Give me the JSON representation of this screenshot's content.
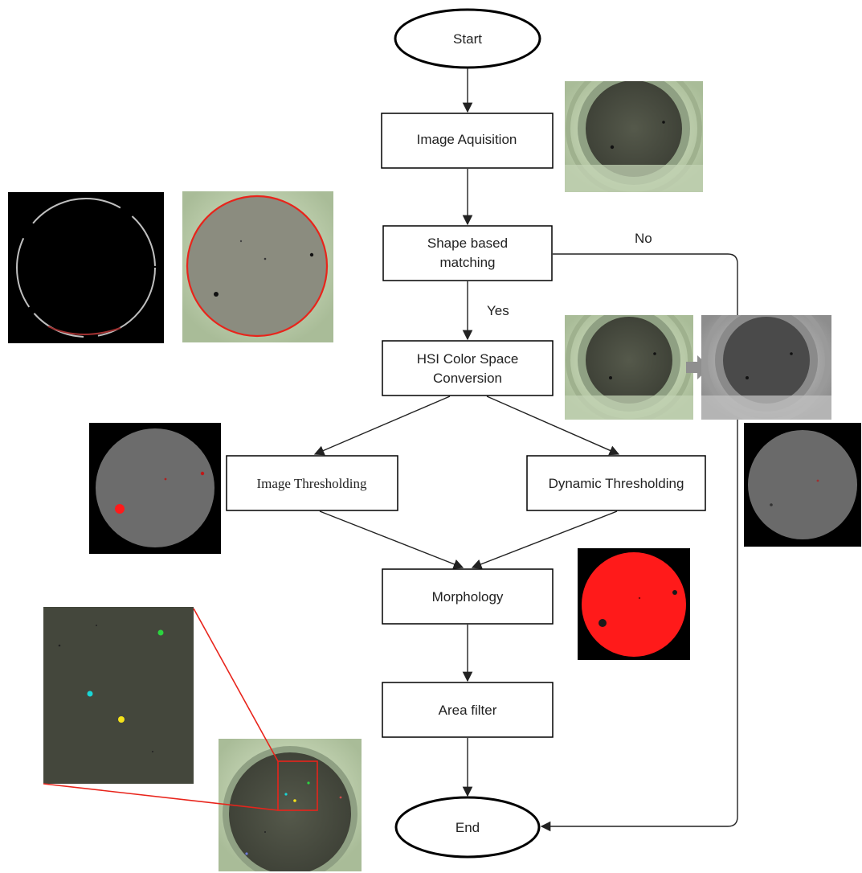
{
  "nodes": {
    "start": "Start",
    "acquisition": "Image Aquisition",
    "shape_line1": "Shape based",
    "shape_line2": "matching",
    "hsi_line1": "HSI Color Space",
    "hsi_line2": "Conversion",
    "image_threshold": "Image Thresholding",
    "dynamic_threshold": "Dynamic Thresholding",
    "morphology": "Morphology",
    "area_filter": "Area filter",
    "end": "End"
  },
  "edges": {
    "yes": "Yes",
    "no": "No"
  },
  "colors": {
    "line": "#222222",
    "plate_green": "#c9dcbf",
    "dish_dark": "#46493e",
    "highlight_red": "#e8241b",
    "threshold_red": "#ff1a1a"
  },
  "images": [
    "acquired-plate-photo",
    "edge-ring-image",
    "matched-plate-photo",
    "hsi-input-photo",
    "hsi-intensity-photo",
    "image-threshold-result",
    "dynamic-threshold-result",
    "morphology-result",
    "detected-particles-zoom",
    "final-plate-photo"
  ]
}
